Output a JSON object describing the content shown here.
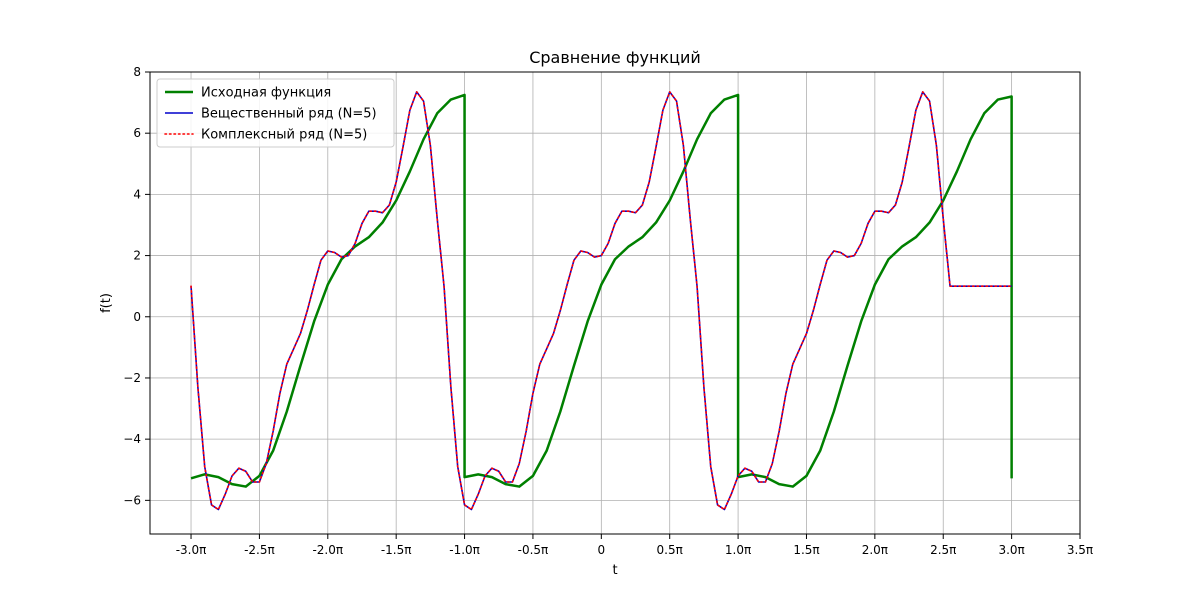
{
  "chart_data": {
    "type": "line",
    "title": "Сравнение функций",
    "xlabel": "t",
    "ylabel": "f(t)",
    "xlim": [
      -3.3,
      3.5
    ],
    "ylim": [
      -7.1,
      8.0
    ],
    "grid": true,
    "legend_position": "upper-left",
    "x_ticks": [
      {
        "value": -3.0,
        "label": "-3.0π"
      },
      {
        "value": -2.5,
        "label": "-2.5π"
      },
      {
        "value": -2.0,
        "label": "-2.0π"
      },
      {
        "value": -1.5,
        "label": "-1.5π"
      },
      {
        "value": -1.0,
        "label": "-1.0π"
      },
      {
        "value": -0.5,
        "label": "-0.5π"
      },
      {
        "value": 0.0,
        "label": "0"
      },
      {
        "value": 0.5,
        "label": "0.5π"
      },
      {
        "value": 1.0,
        "label": "1.0π"
      },
      {
        "value": 1.5,
        "label": "1.5π"
      },
      {
        "value": 2.0,
        "label": "2.0π"
      },
      {
        "value": 2.5,
        "label": "2.5π"
      },
      {
        "value": 3.0,
        "label": "3.0π"
      },
      {
        "value": 3.5,
        "label": "3.5π"
      }
    ],
    "y_ticks": [
      {
        "value": 8,
        "label": "8"
      },
      {
        "value": 6,
        "label": "6"
      },
      {
        "value": 4,
        "label": "4"
      },
      {
        "value": 2,
        "label": "2"
      },
      {
        "value": 0,
        "label": "0"
      },
      {
        "value": -2,
        "label": "−2"
      },
      {
        "value": -4,
        "label": "−4"
      },
      {
        "value": -6,
        "label": "−6"
      }
    ],
    "series": [
      {
        "name": "Исходная функция",
        "color": "#008000",
        "style": "solid",
        "width": 2.5,
        "x": [
          -3.0,
          -2.9,
          -2.8,
          -2.7,
          -2.6,
          -2.5,
          -2.4,
          -2.3,
          -2.2,
          -2.1,
          -2.0,
          -1.9,
          -1.8,
          -1.7,
          -1.6,
          -1.5,
          -1.4,
          -1.3,
          -1.2,
          -1.1,
          -1.0,
          -1.0,
          -0.9,
          -0.8,
          -0.7,
          -0.6,
          -0.5,
          -0.4,
          -0.3,
          -0.2,
          -0.1,
          0.0,
          0.1,
          0.2,
          0.3,
          0.4,
          0.5,
          0.6,
          0.7,
          0.8,
          0.9,
          1.0,
          1.0,
          1.1,
          1.2,
          1.3,
          1.4,
          1.5,
          1.6,
          1.7,
          1.8,
          1.9,
          2.0,
          2.1,
          2.2,
          2.3,
          2.4,
          2.5,
          2.6,
          2.7,
          2.8,
          2.9,
          3.0,
          3.0
        ],
        "y": [
          -5.28,
          -5.15,
          -5.24,
          -5.47,
          -5.55,
          -5.2,
          -4.38,
          -3.1,
          -1.6,
          -0.15,
          1.05,
          1.88,
          2.3,
          2.6,
          3.08,
          3.8,
          4.75,
          5.8,
          6.65,
          7.1,
          7.25,
          -5.24,
          -5.15,
          -5.24,
          -5.47,
          -5.55,
          -5.2,
          -4.38,
          -3.1,
          -1.6,
          -0.15,
          1.05,
          1.88,
          2.3,
          2.6,
          3.08,
          3.8,
          4.75,
          5.8,
          6.65,
          7.1,
          7.25,
          -5.24,
          -5.15,
          -5.24,
          -5.47,
          -5.55,
          -5.2,
          -4.38,
          -3.1,
          -1.6,
          -0.15,
          1.05,
          1.88,
          2.3,
          2.6,
          3.08,
          3.8,
          4.75,
          5.8,
          6.65,
          7.1,
          7.2,
          -5.28
        ]
      },
      {
        "name": "Вещественный ряд (N=5)",
        "color": "#0000cc",
        "style": "solid",
        "width": 1.6,
        "x": [
          -3.0,
          -2.95,
          -2.9,
          -2.85,
          -2.8,
          -2.75,
          -2.7,
          -2.65,
          -2.6,
          -2.55,
          -2.5,
          -2.45,
          -2.4,
          -2.35,
          -2.3,
          -2.25,
          -2.2,
          -2.15,
          -2.1,
          -2.05,
          -2.0,
          -1.95,
          -1.9,
          -1.85,
          -1.8,
          -1.75,
          -1.7,
          -1.65,
          -1.6,
          -1.55,
          -1.5,
          -1.45,
          -1.4,
          -1.35,
          -1.3,
          -1.25,
          -1.2,
          -1.15,
          -1.1,
          -1.05,
          -1.0,
          -0.95,
          -0.9,
          -0.85,
          -0.8,
          -0.75,
          -0.7,
          -0.65,
          -0.6,
          -0.55,
          -0.5,
          -0.45,
          -0.4,
          -0.35,
          -0.3,
          -0.25,
          -0.2,
          -0.15,
          -0.1,
          -0.05,
          0.0,
          0.05,
          0.1,
          0.15,
          0.2,
          0.25,
          0.3,
          0.35,
          0.4,
          0.45,
          0.5,
          0.55,
          0.6,
          0.65,
          0.7,
          0.75,
          0.8,
          0.85,
          0.9,
          0.95,
          1.0,
          1.05,
          1.1,
          1.15,
          1.2,
          1.25,
          1.3,
          1.35,
          1.4,
          1.45,
          1.5,
          1.55,
          1.6,
          1.65,
          1.7,
          1.75,
          1.8,
          1.85,
          1.9,
          1.95,
          2.0,
          2.05,
          2.1,
          2.15,
          2.2,
          2.25,
          2.3,
          2.35,
          2.4,
          2.45,
          2.5,
          2.55,
          2.6,
          2.65,
          2.7,
          2.75,
          2.8,
          2.85,
          2.9,
          2.95,
          3.0
        ],
        "y": [
          1.0,
          -2.3,
          -4.9,
          -6.15,
          -6.3,
          -5.8,
          -5.2,
          -4.95,
          -5.05,
          -5.4,
          -5.4,
          -4.8,
          -3.75,
          -2.5,
          -1.55,
          -1.05,
          -0.55,
          0.2,
          1.05,
          1.85,
          2.15,
          2.1,
          1.95,
          2.0,
          2.4,
          3.05,
          3.45,
          3.45,
          3.4,
          3.65,
          4.4,
          5.55,
          6.75,
          7.35,
          7.05,
          5.6,
          3.2,
          1.0,
          -2.3,
          -4.9,
          -6.15,
          -6.3,
          -5.8,
          -5.2,
          -4.95,
          -5.05,
          -5.4,
          -5.4,
          -4.8,
          -3.75,
          -2.5,
          -1.55,
          -1.05,
          -0.55,
          0.2,
          1.05,
          1.85,
          2.15,
          2.1,
          1.95,
          2.0,
          2.4,
          3.05,
          3.45,
          3.45,
          3.4,
          3.65,
          4.4,
          5.55,
          6.75,
          7.35,
          7.05,
          5.6,
          3.2,
          1.0,
          -2.3,
          -4.9,
          -6.15,
          -6.3,
          -5.8,
          -5.2,
          -4.95,
          -5.05,
          -5.4,
          -5.4,
          -4.8,
          -3.75,
          -2.5,
          -1.55,
          -1.05,
          -0.55,
          0.2,
          1.05,
          1.85,
          2.15,
          2.1,
          1.95,
          2.0,
          2.4,
          3.05,
          3.45,
          3.45,
          3.4,
          3.65,
          4.4,
          5.55,
          6.75,
          7.35,
          7.05,
          5.6,
          3.2,
          1.0,
          1.0,
          1.0,
          1.0,
          1.0,
          1.0,
          1.0,
          1.0,
          1.0,
          1.0
        ]
      },
      {
        "name": "Комплексный ряд (N=5)",
        "color": "#ff0000",
        "style": "dotted",
        "width": 1.6
      }
    ]
  }
}
